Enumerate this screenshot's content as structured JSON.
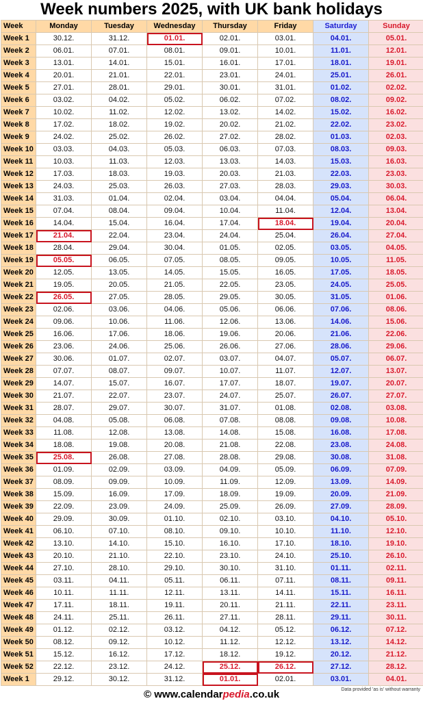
{
  "title": "Week numbers 2025, with UK bank holidays",
  "headers": [
    "Week",
    "Monday",
    "Tuesday",
    "Wednesday",
    "Thursday",
    "Friday",
    "Saturday",
    "Sunday"
  ],
  "rows": [
    {
      "week": "Week 1",
      "days": [
        "30.12.",
        "31.12.",
        "01.01.",
        "02.01.",
        "03.01.",
        "04.01.",
        "05.01."
      ],
      "holidays": [
        2
      ]
    },
    {
      "week": "Week 2",
      "days": [
        "06.01.",
        "07.01.",
        "08.01.",
        "09.01.",
        "10.01.",
        "11.01.",
        "12.01."
      ],
      "holidays": []
    },
    {
      "week": "Week 3",
      "days": [
        "13.01.",
        "14.01.",
        "15.01.",
        "16.01.",
        "17.01.",
        "18.01.",
        "19.01."
      ],
      "holidays": []
    },
    {
      "week": "Week 4",
      "days": [
        "20.01.",
        "21.01.",
        "22.01.",
        "23.01.",
        "24.01.",
        "25.01.",
        "26.01."
      ],
      "holidays": []
    },
    {
      "week": "Week 5",
      "days": [
        "27.01.",
        "28.01.",
        "29.01.",
        "30.01.",
        "31.01.",
        "01.02.",
        "02.02."
      ],
      "holidays": []
    },
    {
      "week": "Week 6",
      "days": [
        "03.02.",
        "04.02.",
        "05.02.",
        "06.02.",
        "07.02.",
        "08.02.",
        "09.02."
      ],
      "holidays": []
    },
    {
      "week": "Week 7",
      "days": [
        "10.02.",
        "11.02.",
        "12.02.",
        "13.02.",
        "14.02.",
        "15.02.",
        "16.02."
      ],
      "holidays": []
    },
    {
      "week": "Week 8",
      "days": [
        "17.02.",
        "18.02.",
        "19.02.",
        "20.02.",
        "21.02.",
        "22.02.",
        "23.02."
      ],
      "holidays": []
    },
    {
      "week": "Week 9",
      "days": [
        "24.02.",
        "25.02.",
        "26.02.",
        "27.02.",
        "28.02.",
        "01.03.",
        "02.03."
      ],
      "holidays": []
    },
    {
      "week": "Week 10",
      "days": [
        "03.03.",
        "04.03.",
        "05.03.",
        "06.03.",
        "07.03.",
        "08.03.",
        "09.03."
      ],
      "holidays": []
    },
    {
      "week": "Week 11",
      "days": [
        "10.03.",
        "11.03.",
        "12.03.",
        "13.03.",
        "14.03.",
        "15.03.",
        "16.03."
      ],
      "holidays": []
    },
    {
      "week": "Week 12",
      "days": [
        "17.03.",
        "18.03.",
        "19.03.",
        "20.03.",
        "21.03.",
        "22.03.",
        "23.03."
      ],
      "holidays": []
    },
    {
      "week": "Week 13",
      "days": [
        "24.03.",
        "25.03.",
        "26.03.",
        "27.03.",
        "28.03.",
        "29.03.",
        "30.03."
      ],
      "holidays": []
    },
    {
      "week": "Week 14",
      "days": [
        "31.03.",
        "01.04.",
        "02.04.",
        "03.04.",
        "04.04.",
        "05.04.",
        "06.04."
      ],
      "holidays": []
    },
    {
      "week": "Week 15",
      "days": [
        "07.04.",
        "08.04.",
        "09.04.",
        "10.04.",
        "11.04.",
        "12.04.",
        "13.04."
      ],
      "holidays": []
    },
    {
      "week": "Week 16",
      "days": [
        "14.04.",
        "15.04.",
        "16.04.",
        "17.04.",
        "18.04.",
        "19.04.",
        "20.04."
      ],
      "holidays": [
        4
      ]
    },
    {
      "week": "Week 17",
      "days": [
        "21.04.",
        "22.04.",
        "23.04.",
        "24.04.",
        "25.04.",
        "26.04.",
        "27.04."
      ],
      "holidays": [
        0
      ]
    },
    {
      "week": "Week 18",
      "days": [
        "28.04.",
        "29.04.",
        "30.04.",
        "01.05.",
        "02.05.",
        "03.05.",
        "04.05."
      ],
      "holidays": []
    },
    {
      "week": "Week 19",
      "days": [
        "05.05.",
        "06.05.",
        "07.05.",
        "08.05.",
        "09.05.",
        "10.05.",
        "11.05."
      ],
      "holidays": [
        0
      ]
    },
    {
      "week": "Week 20",
      "days": [
        "12.05.",
        "13.05.",
        "14.05.",
        "15.05.",
        "16.05.",
        "17.05.",
        "18.05."
      ],
      "holidays": []
    },
    {
      "week": "Week 21",
      "days": [
        "19.05.",
        "20.05.",
        "21.05.",
        "22.05.",
        "23.05.",
        "24.05.",
        "25.05."
      ],
      "holidays": []
    },
    {
      "week": "Week 22",
      "days": [
        "26.05.",
        "27.05.",
        "28.05.",
        "29.05.",
        "30.05.",
        "31.05.",
        "01.06."
      ],
      "holidays": [
        0
      ]
    },
    {
      "week": "Week 23",
      "days": [
        "02.06.",
        "03.06.",
        "04.06.",
        "05.06.",
        "06.06.",
        "07.06.",
        "08.06."
      ],
      "holidays": []
    },
    {
      "week": "Week 24",
      "days": [
        "09.06.",
        "10.06.",
        "11.06.",
        "12.06.",
        "13.06.",
        "14.06.",
        "15.06."
      ],
      "holidays": []
    },
    {
      "week": "Week 25",
      "days": [
        "16.06.",
        "17.06.",
        "18.06.",
        "19.06.",
        "20.06.",
        "21.06.",
        "22.06."
      ],
      "holidays": []
    },
    {
      "week": "Week 26",
      "days": [
        "23.06.",
        "24.06.",
        "25.06.",
        "26.06.",
        "27.06.",
        "28.06.",
        "29.06."
      ],
      "holidays": []
    },
    {
      "week": "Week 27",
      "days": [
        "30.06.",
        "01.07.",
        "02.07.",
        "03.07.",
        "04.07.",
        "05.07.",
        "06.07."
      ],
      "holidays": []
    },
    {
      "week": "Week 28",
      "days": [
        "07.07.",
        "08.07.",
        "09.07.",
        "10.07.",
        "11.07.",
        "12.07.",
        "13.07."
      ],
      "holidays": []
    },
    {
      "week": "Week 29",
      "days": [
        "14.07.",
        "15.07.",
        "16.07.",
        "17.07.",
        "18.07.",
        "19.07.",
        "20.07."
      ],
      "holidays": []
    },
    {
      "week": "Week 30",
      "days": [
        "21.07.",
        "22.07.",
        "23.07.",
        "24.07.",
        "25.07.",
        "26.07.",
        "27.07."
      ],
      "holidays": []
    },
    {
      "week": "Week 31",
      "days": [
        "28.07.",
        "29.07.",
        "30.07.",
        "31.07.",
        "01.08.",
        "02.08.",
        "03.08."
      ],
      "holidays": []
    },
    {
      "week": "Week 32",
      "days": [
        "04.08.",
        "05.08.",
        "06.08.",
        "07.08.",
        "08.08.",
        "09.08.",
        "10.08."
      ],
      "holidays": []
    },
    {
      "week": "Week 33",
      "days": [
        "11.08.",
        "12.08.",
        "13.08.",
        "14.08.",
        "15.08.",
        "16.08.",
        "17.08."
      ],
      "holidays": []
    },
    {
      "week": "Week 34",
      "days": [
        "18.08.",
        "19.08.",
        "20.08.",
        "21.08.",
        "22.08.",
        "23.08.",
        "24.08."
      ],
      "holidays": []
    },
    {
      "week": "Week 35",
      "days": [
        "25.08.",
        "26.08.",
        "27.08.",
        "28.08.",
        "29.08.",
        "30.08.",
        "31.08."
      ],
      "holidays": [
        0
      ]
    },
    {
      "week": "Week 36",
      "days": [
        "01.09.",
        "02.09.",
        "03.09.",
        "04.09.",
        "05.09.",
        "06.09.",
        "07.09."
      ],
      "holidays": []
    },
    {
      "week": "Week 37",
      "days": [
        "08.09.",
        "09.09.",
        "10.09.",
        "11.09.",
        "12.09.",
        "13.09.",
        "14.09."
      ],
      "holidays": []
    },
    {
      "week": "Week 38",
      "days": [
        "15.09.",
        "16.09.",
        "17.09.",
        "18.09.",
        "19.09.",
        "20.09.",
        "21.09."
      ],
      "holidays": []
    },
    {
      "week": "Week 39",
      "days": [
        "22.09.",
        "23.09.",
        "24.09.",
        "25.09.",
        "26.09.",
        "27.09.",
        "28.09."
      ],
      "holidays": []
    },
    {
      "week": "Week 40",
      "days": [
        "29.09.",
        "30.09.",
        "01.10.",
        "02.10.",
        "03.10.",
        "04.10.",
        "05.10."
      ],
      "holidays": []
    },
    {
      "week": "Week 41",
      "days": [
        "06.10.",
        "07.10.",
        "08.10.",
        "09.10.",
        "10.10.",
        "11.10.",
        "12.10."
      ],
      "holidays": []
    },
    {
      "week": "Week 42",
      "days": [
        "13.10.",
        "14.10.",
        "15.10.",
        "16.10.",
        "17.10.",
        "18.10.",
        "19.10."
      ],
      "holidays": []
    },
    {
      "week": "Week 43",
      "days": [
        "20.10.",
        "21.10.",
        "22.10.",
        "23.10.",
        "24.10.",
        "25.10.",
        "26.10."
      ],
      "holidays": []
    },
    {
      "week": "Week 44",
      "days": [
        "27.10.",
        "28.10.",
        "29.10.",
        "30.10.",
        "31.10.",
        "01.11.",
        "02.11."
      ],
      "holidays": []
    },
    {
      "week": "Week 45",
      "days": [
        "03.11.",
        "04.11.",
        "05.11.",
        "06.11.",
        "07.11.",
        "08.11.",
        "09.11."
      ],
      "holidays": []
    },
    {
      "week": "Week 46",
      "days": [
        "10.11.",
        "11.11.",
        "12.11.",
        "13.11.",
        "14.11.",
        "15.11.",
        "16.11."
      ],
      "holidays": []
    },
    {
      "week": "Week 47",
      "days": [
        "17.11.",
        "18.11.",
        "19.11.",
        "20.11.",
        "21.11.",
        "22.11.",
        "23.11."
      ],
      "holidays": []
    },
    {
      "week": "Week 48",
      "days": [
        "24.11.",
        "25.11.",
        "26.11.",
        "27.11.",
        "28.11.",
        "29.11.",
        "30.11."
      ],
      "holidays": []
    },
    {
      "week": "Week 49",
      "days": [
        "01.12.",
        "02.12.",
        "03.12.",
        "04.12.",
        "05.12.",
        "06.12.",
        "07.12."
      ],
      "holidays": []
    },
    {
      "week": "Week 50",
      "days": [
        "08.12.",
        "09.12.",
        "10.12.",
        "11.12.",
        "12.12.",
        "13.12.",
        "14.12."
      ],
      "holidays": []
    },
    {
      "week": "Week 51",
      "days": [
        "15.12.",
        "16.12.",
        "17.12.",
        "18.12.",
        "19.12.",
        "20.12.",
        "21.12."
      ],
      "holidays": []
    },
    {
      "week": "Week 52",
      "days": [
        "22.12.",
        "23.12.",
        "24.12.",
        "25.12.",
        "26.12.",
        "27.12.",
        "28.12."
      ],
      "holidays": [
        3,
        4
      ]
    },
    {
      "week": "Week 1",
      "days": [
        "29.12.",
        "30.12.",
        "31.12.",
        "01.01.",
        "02.01.",
        "03.01.",
        "04.01."
      ],
      "holidays": [
        3
      ]
    }
  ],
  "colors": {
    "week_column": "#ffd9a6",
    "saturday": "#d6e3fb",
    "sunday": "#fbe0e0",
    "holiday_border": "#c8141e",
    "holiday_text": "#d8192c"
  },
  "footer": {
    "copyright": "©",
    "site_prefix": "www.calendar",
    "site_highlight": "pedia",
    "site_suffix": ".co.uk",
    "note": "Data provided 'as is' without warranty"
  }
}
